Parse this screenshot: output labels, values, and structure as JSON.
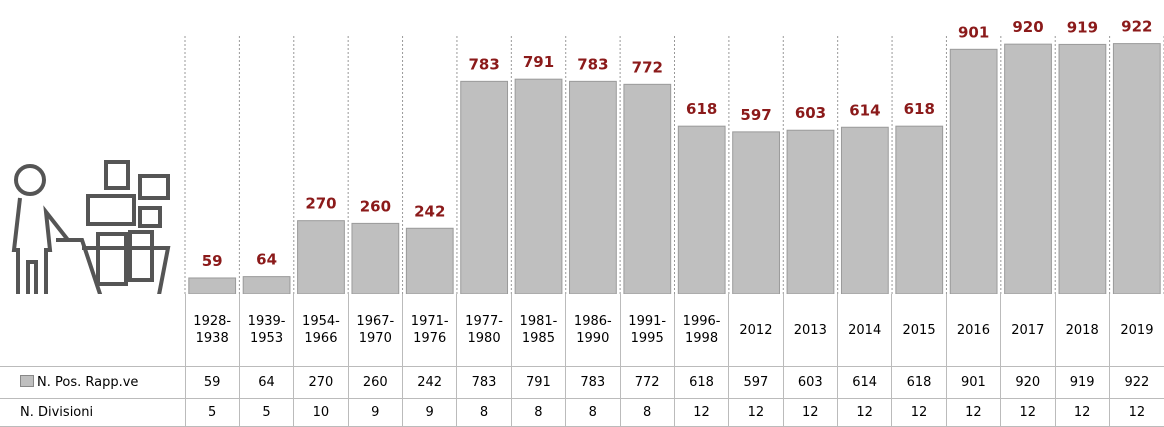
{
  "chart_data": {
    "type": "bar",
    "categories": [
      "1928-1938",
      "1939-1953",
      "1954-1966",
      "1967-1970",
      "1971-1976",
      "1977-1980",
      "1981-1985",
      "1986-1990",
      "1991-1995",
      "1996-1998",
      "2012",
      "2013",
      "2014",
      "2015",
      "2016",
      "2017",
      "2018",
      "2019"
    ],
    "series": [
      {
        "name": "N. Pos. Rapp.ve",
        "color": "#bfbfbf",
        "values": [
          59,
          64,
          270,
          260,
          242,
          783,
          791,
          783,
          772,
          618,
          597,
          603,
          614,
          618,
          901,
          920,
          919,
          922
        ]
      },
      {
        "name": "N. Divisioni",
        "values": [
          5,
          5,
          10,
          9,
          9,
          8,
          8,
          8,
          8,
          12,
          12,
          12,
          12,
          12,
          12,
          12,
          12,
          12
        ]
      }
    ],
    "ylim": [
      0,
      950
    ],
    "label_color": "#8b1a1a"
  }
}
